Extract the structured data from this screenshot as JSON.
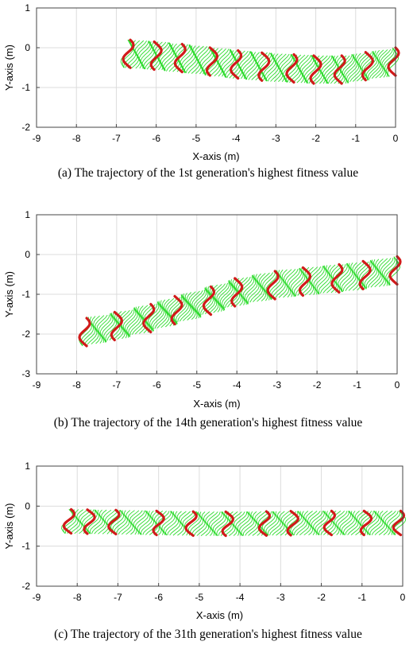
{
  "chart_data": [
    {
      "type": "line",
      "panel": "a",
      "caption": "(a) The trajectory of the 1st generation's highest fitness value",
      "xlabel": "X-axis (m)",
      "ylabel": "Y-axis (m)",
      "xlim": [
        -9,
        0
      ],
      "ylim": [
        -2,
        1
      ],
      "xticks": [
        "-9",
        "-8",
        "-7",
        "-6",
        "-5",
        "-4",
        "-3",
        "-2",
        "-1",
        "0"
      ],
      "yticks": [
        "-2",
        "-1",
        "0",
        "1"
      ],
      "grid": true,
      "series": [
        {
          "color": "#2fdc2f",
          "x": [
            -6.75,
            -6.0,
            -5.0,
            -4.0,
            -3.0,
            -2.0,
            -1.3,
            -0.6,
            -0.05
          ],
          "y": [
            -0.15,
            -0.2,
            -0.3,
            -0.42,
            -0.5,
            -0.55,
            -0.55,
            -0.45,
            -0.35
          ]
        }
      ],
      "snapshot_x": [
        -6.7,
        -6.0,
        -5.4,
        -4.6,
        -4.0,
        -3.3,
        -2.6,
        -2.0,
        -1.4,
        -0.7,
        -0.05
      ],
      "wave_amplitude": 0.35
    },
    {
      "type": "line",
      "panel": "b",
      "caption": "(b) The trajectory of the 14th generation's highest fitness value",
      "xlabel": "X-axis (m)",
      "ylabel": "Y-axis (m)",
      "xlim": [
        -9,
        0
      ],
      "ylim": [
        -3,
        1
      ],
      "xticks": [
        "-9",
        "-8",
        "-7",
        "-6",
        "-5",
        "-4",
        "-3",
        "-2",
        "-1",
        "0"
      ],
      "yticks": [
        "-3",
        "-2",
        "-1",
        "0",
        "1"
      ],
      "grid": true,
      "series": [
        {
          "color": "#2fdc2f",
          "x": [
            -7.8,
            -7.0,
            -6.0,
            -5.0,
            -4.0,
            -3.0,
            -2.0,
            -1.0,
            -0.05
          ],
          "y": [
            -1.95,
            -1.8,
            -1.55,
            -1.25,
            -0.95,
            -0.75,
            -0.65,
            -0.55,
            -0.4
          ]
        }
      ],
      "snapshot_x": [
        -7.8,
        -7.0,
        -6.2,
        -5.5,
        -4.7,
        -4.0,
        -3.1,
        -2.3,
        -1.5,
        -0.8,
        -0.05
      ],
      "wave_amplitude": 0.35
    },
    {
      "type": "line",
      "panel": "c",
      "caption": "(c) The trajectory of the 31th generation's highest fitness value",
      "xlabel": "X-axis (m)",
      "ylabel": "Y-axis (m)",
      "xlim": [
        -9,
        0
      ],
      "ylim": [
        -2,
        1
      ],
      "xticks": [
        "-9",
        "-8",
        "-7",
        "-6",
        "-5",
        "-4",
        "-3",
        "-2",
        "-1",
        "0"
      ],
      "yticks": [
        "-2",
        "-1",
        "0",
        "1"
      ],
      "grid": true,
      "series": [
        {
          "color": "#2fdc2f",
          "x": [
            -8.25,
            -7.0,
            -6.0,
            -5.0,
            -4.0,
            -3.0,
            -2.0,
            -1.0,
            -0.05
          ],
          "y": [
            -0.38,
            -0.4,
            -0.42,
            -0.44,
            -0.44,
            -0.43,
            -0.42,
            -0.42,
            -0.42
          ]
        }
      ],
      "snapshot_x": [
        -8.2,
        -7.7,
        -7.1,
        -6.0,
        -5.2,
        -4.3,
        -3.4,
        -2.7,
        -1.8,
        -0.9,
        -0.1
      ],
      "wave_amplitude": 0.3
    }
  ],
  "colors": {
    "body": "#2fdc2f",
    "snapshot": "#d11a1a"
  }
}
